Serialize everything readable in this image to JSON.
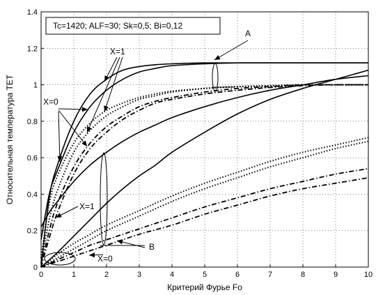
{
  "chart_data": {
    "type": "line",
    "title": "",
    "xlabel": "Критерий Фурье Fo",
    "ylabel": "Относительная температура TET",
    "xlim": [
      0,
      10
    ],
    "ylim": [
      0,
      1.4
    ],
    "x_ticks": [
      "0",
      "1",
      "2",
      "3",
      "4",
      "5",
      "6",
      "7",
      "8",
      "9",
      "10"
    ],
    "y_ticks": [
      "0",
      "0.2",
      "0.4",
      "0.6",
      "0.8",
      "1",
      "1.2",
      "1.4"
    ],
    "grid": true,
    "legend_box_text": "Tc=1420; ALF=30; Sk=0,5; Bi=0,12",
    "legend_position": "top-left",
    "annotations": {
      "A": "A",
      "B": "B",
      "X1_top": "X=1",
      "X0_top": "X=0",
      "X1_bottom": "X=1",
      "X0_bottom": "X=0"
    },
    "series": [
      {
        "style": "solid",
        "x": [
          0,
          0.25,
          0.5,
          1,
          1.5,
          2,
          2.5,
          3,
          3.5,
          4,
          5,
          6,
          7,
          8,
          9,
          10
        ],
        "y": [
          0,
          0.38,
          0.56,
          0.8,
          0.95,
          1.03,
          1.08,
          1.1,
          1.11,
          1.115,
          1.12,
          1.12,
          1.12,
          1.12,
          1.12,
          1.12
        ]
      },
      {
        "style": "solid",
        "x": [
          0,
          0.25,
          0.5,
          1,
          1.5,
          2,
          2.5,
          3,
          3.5,
          4,
          5,
          6,
          7,
          8,
          9,
          10
        ],
        "y": [
          0.15,
          0.4,
          0.53,
          0.74,
          0.88,
          0.97,
          1.03,
          1.07,
          1.09,
          1.105,
          1.115,
          1.12,
          1.12,
          1.12,
          1.12,
          1.12
        ]
      },
      {
        "style": "solid",
        "x": [
          0,
          0.25,
          0.5,
          1,
          1.5,
          2,
          2.5,
          3,
          3.5,
          4,
          5,
          6,
          7,
          8,
          9,
          10
        ],
        "y": [
          0.22,
          0.3,
          0.36,
          0.47,
          0.56,
          0.63,
          0.69,
          0.74,
          0.78,
          0.82,
          0.88,
          0.93,
          0.97,
          1.0,
          1.03,
          1.05
        ]
      },
      {
        "style": "solid",
        "x": [
          0,
          0.5,
          1,
          1.5,
          2,
          2.5,
          3,
          3.5,
          4,
          5,
          6,
          7,
          8,
          9,
          10
        ],
        "y": [
          0,
          0.08,
          0.17,
          0.26,
          0.35,
          0.43,
          0.5,
          0.56,
          0.63,
          0.74,
          0.84,
          0.92,
          0.98,
          1.03,
          1.08
        ]
      },
      {
        "style": "dotted",
        "x": [
          0,
          0.25,
          0.5,
          1,
          1.5,
          2,
          2.5,
          3,
          3.5,
          4,
          5,
          6,
          7,
          8,
          9,
          10
        ],
        "y": [
          0.05,
          0.35,
          0.5,
          0.68,
          0.79,
          0.86,
          0.9,
          0.93,
          0.95,
          0.965,
          0.98,
          0.99,
          0.995,
          1.0,
          1.0,
          1.0
        ]
      },
      {
        "style": "dotted",
        "x": [
          0,
          0.25,
          0.5,
          1,
          1.5,
          2,
          2.5,
          3,
          3.5,
          4,
          5,
          6,
          7,
          8,
          9,
          10
        ],
        "y": [
          0.02,
          0.26,
          0.42,
          0.63,
          0.75,
          0.83,
          0.88,
          0.92,
          0.94,
          0.96,
          0.98,
          0.99,
          0.995,
          1.0,
          1.0,
          1.0
        ]
      },
      {
        "style": "dashdot",
        "x": [
          0,
          0.25,
          0.5,
          1,
          1.5,
          2,
          2.5,
          3,
          3.5,
          4,
          5,
          6,
          7,
          8,
          9,
          10
        ],
        "y": [
          0.0,
          0.2,
          0.35,
          0.55,
          0.68,
          0.77,
          0.83,
          0.88,
          0.91,
          0.93,
          0.96,
          0.98,
          0.99,
          1.0,
          1.0,
          1.0
        ]
      },
      {
        "style": "dashdot",
        "x": [
          0,
          0.25,
          0.5,
          1,
          1.5,
          2,
          2.5,
          3,
          3.5,
          4,
          5,
          6,
          7,
          8,
          9,
          10
        ],
        "y": [
          0.0,
          0.16,
          0.3,
          0.51,
          0.65,
          0.74,
          0.81,
          0.86,
          0.9,
          0.92,
          0.95,
          0.97,
          0.985,
          0.995,
          1.0,
          1.0
        ]
      },
      {
        "style": "dotted",
        "x": [
          0,
          0.5,
          1,
          1.5,
          2,
          3,
          4,
          5,
          6,
          7,
          8,
          9,
          10
        ],
        "y": [
          0,
          0.07,
          0.13,
          0.18,
          0.23,
          0.31,
          0.39,
          0.46,
          0.52,
          0.58,
          0.63,
          0.67,
          0.71
        ]
      },
      {
        "style": "dotted",
        "x": [
          0,
          0.5,
          1,
          1.5,
          2,
          3,
          4,
          5,
          6,
          7,
          8,
          9,
          10
        ],
        "y": [
          0,
          0.05,
          0.1,
          0.15,
          0.2,
          0.28,
          0.36,
          0.43,
          0.49,
          0.55,
          0.6,
          0.65,
          0.69
        ]
      },
      {
        "style": "dashdot",
        "x": [
          0,
          0.5,
          1,
          1.5,
          2,
          3,
          4,
          5,
          6,
          7,
          8,
          9,
          10
        ],
        "y": [
          0,
          0.04,
          0.08,
          0.12,
          0.15,
          0.21,
          0.27,
          0.33,
          0.38,
          0.43,
          0.47,
          0.51,
          0.54
        ]
      },
      {
        "style": "dashdot",
        "x": [
          0,
          0.5,
          1,
          1.5,
          2,
          3,
          4,
          5,
          6,
          7,
          8,
          9,
          10
        ],
        "y": [
          0,
          0.03,
          0.06,
          0.09,
          0.12,
          0.18,
          0.23,
          0.29,
          0.34,
          0.39,
          0.43,
          0.46,
          0.49
        ]
      }
    ]
  }
}
